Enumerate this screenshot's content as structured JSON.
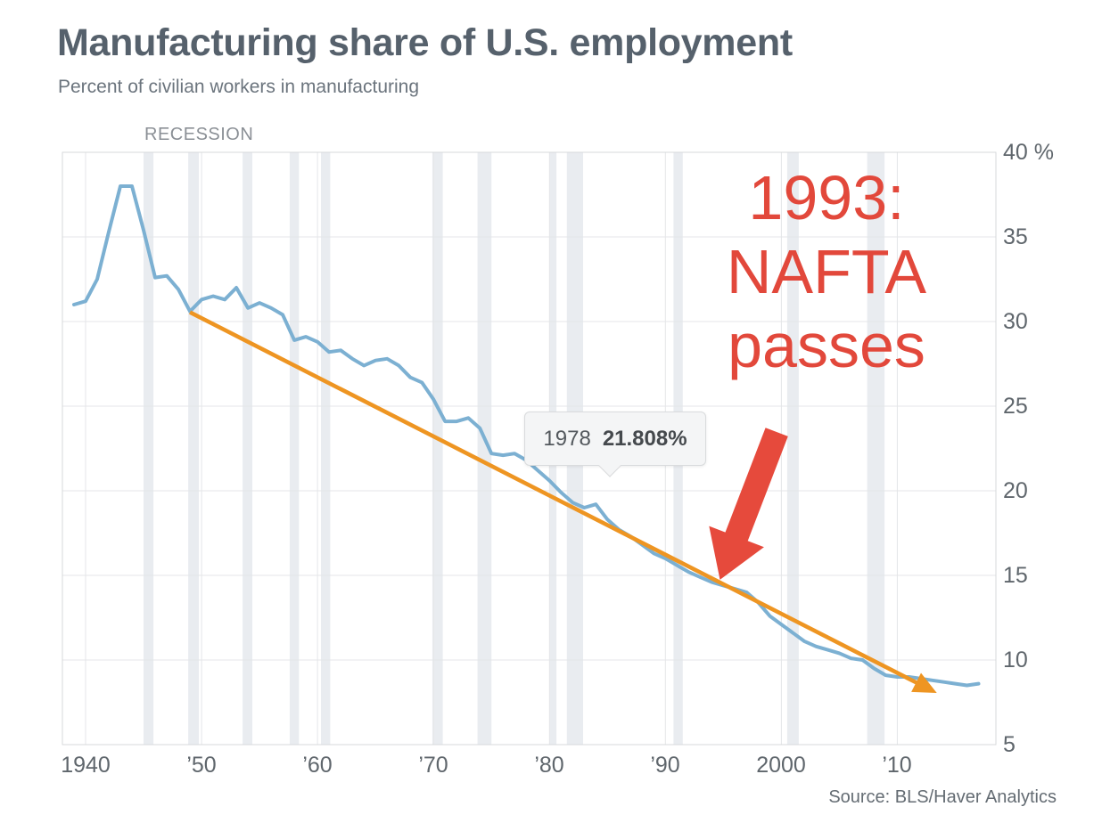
{
  "header": {
    "title": "Manufacturing share of U.S. employment",
    "subtitle": "Percent of civilian workers in manufacturing"
  },
  "chart_data": {
    "type": "line",
    "title": "Manufacturing share of U.S. employment",
    "subtitle": "Percent of civilian workers in manufacturing",
    "xlabel": "",
    "ylabel": "Percent of civilian workers in manufacturing",
    "xlim": [
      1938.0,
      2018.5
    ],
    "ylim": [
      5,
      40
    ],
    "grid": true,
    "legend": "none",
    "yticks": {
      "values": [
        40,
        35,
        30,
        25,
        20,
        15,
        10,
        5
      ],
      "labels": [
        "40 %",
        "35",
        "30",
        "25",
        "20",
        "15",
        "10",
        "5"
      ]
    },
    "xticks": {
      "values": [
        1940,
        1950,
        1960,
        1970,
        1980,
        1990,
        2000,
        2010
      ],
      "labels": [
        "1940",
        "’50",
        "’60",
        "’70",
        "’80",
        "’90",
        "2000",
        "’10"
      ]
    },
    "series": [
      {
        "name": "Manufacturing share of employment (%)",
        "color": "#7cb0d2",
        "x": [
          1939,
          1940,
          1941,
          1942,
          1943,
          1944,
          1945,
          1946,
          1947,
          1948,
          1949,
          1950,
          1951,
          1952,
          1953,
          1954,
          1955,
          1956,
          1957,
          1958,
          1959,
          1960,
          1961,
          1962,
          1963,
          1964,
          1965,
          1966,
          1967,
          1968,
          1969,
          1970,
          1971,
          1972,
          1973,
          1974,
          1975,
          1976,
          1977,
          1978,
          1979,
          1980,
          1981,
          1982,
          1983,
          1984,
          1985,
          1986,
          1987,
          1988,
          1989,
          1990,
          1991,
          1992,
          1993,
          1994,
          1995,
          1996,
          1997,
          1998,
          1999,
          2000,
          2001,
          2002,
          2003,
          2004,
          2005,
          2006,
          2007,
          2008,
          2009,
          2010,
          2011,
          2012,
          2013,
          2014,
          2015,
          2016,
          2017
        ],
        "values": [
          31.0,
          31.2,
          32.5,
          35.3,
          38.0,
          38.0,
          35.4,
          32.6,
          32.7,
          31.9,
          30.6,
          31.3,
          31.5,
          31.3,
          32.0,
          30.8,
          31.1,
          30.8,
          30.4,
          28.9,
          29.1,
          28.8,
          28.2,
          28.3,
          27.8,
          27.4,
          27.7,
          27.8,
          27.4,
          26.7,
          26.4,
          25.4,
          24.1,
          24.1,
          24.3,
          23.7,
          22.2,
          22.1,
          22.2,
          21.808,
          21.2,
          20.6,
          19.9,
          19.3,
          19.0,
          19.2,
          18.3,
          17.7,
          17.3,
          16.8,
          16.3,
          16.0,
          15.6,
          15.2,
          14.9,
          14.6,
          14.4,
          14.2,
          14.0,
          13.4,
          12.6,
          12.1,
          11.6,
          11.1,
          10.8,
          10.6,
          10.4,
          10.1,
          10.0,
          9.5,
          9.1,
          9.0,
          9.0,
          8.9,
          8.8,
          8.7,
          8.6,
          8.5,
          8.6
        ]
      }
    ],
    "recession_label": "RECESSION",
    "recession_band_color": "#e9ecf0",
    "recession_bands": [
      [
        1945.0,
        1945.85
      ],
      [
        1948.85,
        1949.77
      ],
      [
        1953.54,
        1954.38
      ],
      [
        1957.6,
        1958.4
      ],
      [
        1960.3,
        1961.1
      ],
      [
        1969.9,
        1970.8
      ],
      [
        1973.8,
        1975.0
      ],
      [
        1980.0,
        1980.6
      ],
      [
        1981.5,
        1982.9
      ],
      [
        1990.7,
        1991.5
      ],
      [
        2000.5,
        2001.5
      ],
      [
        2007.4,
        2008.9
      ]
    ],
    "tooltip": {
      "year": "1978",
      "value": "21.808%"
    },
    "annotation": {
      "lines": [
        "1993:",
        "NAFTA",
        "passes"
      ],
      "color": "#e2483b"
    },
    "trend_arrow": {
      "color": "#ee9522",
      "from": {
        "year": 1949.0,
        "value": 30.55
      },
      "to": {
        "year": 2013.4,
        "value": 8.05
      }
    },
    "red_arrow": {
      "color": "#e64a3c",
      "from": {
        "year": 1999.6,
        "value": 23.47
      },
      "to": {
        "year": 1994.7,
        "value": 14.74
      }
    },
    "source": "Source: BLS/Haver Analytics"
  }
}
